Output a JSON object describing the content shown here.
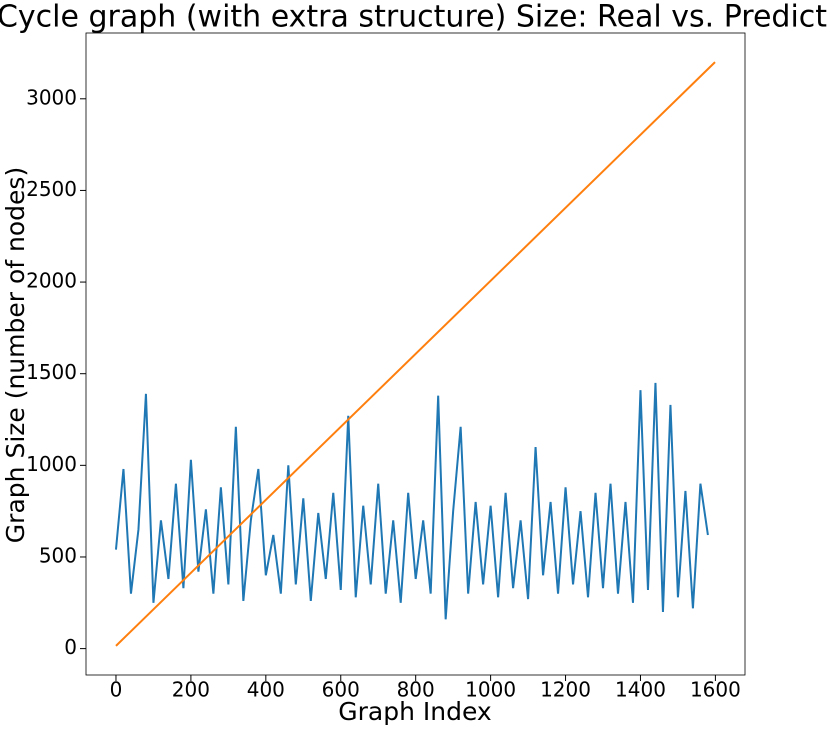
{
  "chart_data": {
    "type": "line",
    "title": "Cycle graph (with extra structure) Size: Real vs. Predict",
    "x_label": "Graph Index",
    "y_label": "Graph Size (number of nodes)",
    "xlim": [
      -80,
      1679
    ],
    "ylim": [
      -144,
      3359
    ],
    "xticks": [
      0,
      200,
      400,
      600,
      800,
      1000,
      1200,
      1400,
      1600
    ],
    "yticks": [
      0,
      500,
      1000,
      1500,
      2000,
      2500,
      3000
    ],
    "series": [
      {
        "color": "#1f77b4",
        "x": [
          0,
          20,
          40,
          60,
          80,
          100,
          120,
          140,
          160,
          180,
          200,
          220,
          240,
          260,
          280,
          300,
          320,
          340,
          360,
          380,
          400,
          420,
          440,
          460,
          480,
          500,
          520,
          540,
          560,
          580,
          600,
          620,
          640,
          660,
          680,
          700,
          720,
          740,
          760,
          780,
          800,
          820,
          840,
          860,
          880,
          900,
          920,
          940,
          960,
          980,
          1000,
          1020,
          1040,
          1060,
          1080,
          1100,
          1120,
          1140,
          1160,
          1180,
          1200,
          1220,
          1240,
          1260,
          1280,
          1300,
          1320,
          1340,
          1360,
          1380,
          1400,
          1420,
          1440,
          1460,
          1480,
          1500,
          1520,
          1540,
          1560,
          1580
        ],
        "values": [
          540,
          980,
          300,
          650,
          1390,
          250,
          700,
          380,
          900,
          330,
          1030,
          420,
          760,
          300,
          880,
          350,
          1210,
          260,
          700,
          980,
          400,
          620,
          300,
          1000,
          350,
          820,
          260,
          740,
          380,
          850,
          320,
          1270,
          280,
          780,
          350,
          900,
          300,
          700,
          250,
          850,
          380,
          700,
          300,
          1380,
          160,
          750,
          1210,
          300,
          800,
          350,
          780,
          280,
          850,
          330,
          700,
          270,
          1100,
          400,
          800,
          300,
          880,
          350,
          750,
          280,
          850,
          330,
          900,
          300,
          800,
          250,
          1410,
          320,
          1450,
          200,
          1330,
          280,
          860,
          220,
          900,
          620
        ]
      },
      {
        "color": "#ff7f0e",
        "x": [
          0,
          1599
        ],
        "values": [
          15,
          3200
        ]
      }
    ]
  }
}
